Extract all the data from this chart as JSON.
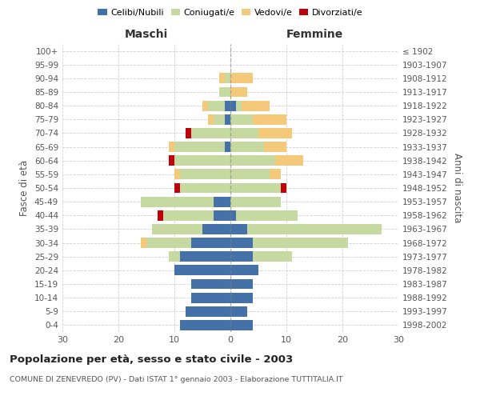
{
  "age_groups": [
    "0-4",
    "5-9",
    "10-14",
    "15-19",
    "20-24",
    "25-29",
    "30-34",
    "35-39",
    "40-44",
    "45-49",
    "50-54",
    "55-59",
    "60-64",
    "65-69",
    "70-74",
    "75-79",
    "80-84",
    "85-89",
    "90-94",
    "95-99",
    "100+"
  ],
  "birth_years": [
    "1998-2002",
    "1993-1997",
    "1988-1992",
    "1983-1987",
    "1978-1982",
    "1973-1977",
    "1968-1972",
    "1963-1967",
    "1958-1962",
    "1953-1957",
    "1948-1952",
    "1943-1947",
    "1938-1942",
    "1933-1937",
    "1928-1932",
    "1923-1927",
    "1918-1922",
    "1913-1917",
    "1908-1912",
    "1903-1907",
    "≤ 1902"
  ],
  "maschi": {
    "celibi": [
      9,
      8,
      7,
      7,
      10,
      9,
      7,
      5,
      3,
      3,
      0,
      0,
      0,
      1,
      0,
      1,
      1,
      0,
      0,
      0,
      0
    ],
    "coniugati": [
      0,
      0,
      0,
      0,
      0,
      2,
      8,
      9,
      9,
      13,
      9,
      9,
      10,
      9,
      7,
      2,
      3,
      2,
      1,
      0,
      0
    ],
    "vedovi": [
      0,
      0,
      0,
      0,
      0,
      0,
      1,
      0,
      0,
      0,
      0,
      1,
      0,
      1,
      0,
      1,
      1,
      0,
      1,
      0,
      0
    ],
    "divorziati": [
      0,
      0,
      0,
      0,
      0,
      0,
      0,
      0,
      1,
      0,
      1,
      0,
      1,
      0,
      1,
      0,
      0,
      0,
      0,
      0,
      0
    ]
  },
  "femmine": {
    "nubili": [
      4,
      3,
      4,
      4,
      5,
      4,
      4,
      3,
      1,
      0,
      0,
      0,
      0,
      0,
      0,
      0,
      1,
      0,
      0,
      0,
      0
    ],
    "coniugate": [
      0,
      0,
      0,
      0,
      0,
      7,
      17,
      24,
      11,
      9,
      9,
      7,
      8,
      6,
      5,
      4,
      1,
      0,
      0,
      0,
      0
    ],
    "vedove": [
      0,
      0,
      0,
      0,
      0,
      0,
      0,
      0,
      0,
      0,
      0,
      2,
      5,
      4,
      6,
      6,
      5,
      3,
      4,
      0,
      0
    ],
    "divorziate": [
      0,
      0,
      0,
      0,
      0,
      0,
      0,
      0,
      0,
      0,
      1,
      0,
      0,
      0,
      0,
      0,
      0,
      0,
      0,
      0,
      0
    ]
  },
  "colors": {
    "celibi": "#4472a8",
    "coniugati": "#c5d9a0",
    "vedovi": "#f5c97a",
    "divorziati": "#c0000b"
  },
  "legend_labels": [
    "Celibi/Nubili",
    "Coniugati/e",
    "Vedovi/e",
    "Divorziati/e"
  ],
  "title": "Popolazione per età, sesso e stato civile - 2003",
  "subtitle": "COMUNE DI ZENEVREDO (PV) - Dati ISTAT 1° gennaio 2003 - Elaborazione TUTTITALIA.IT",
  "xlabel_left": "Maschi",
  "xlabel_right": "Femmine",
  "ylabel_left": "Fasce di età",
  "ylabel_right": "Anni di nascita",
  "xlim": 30,
  "background_color": "#ffffff",
  "grid_color": "#cccccc"
}
